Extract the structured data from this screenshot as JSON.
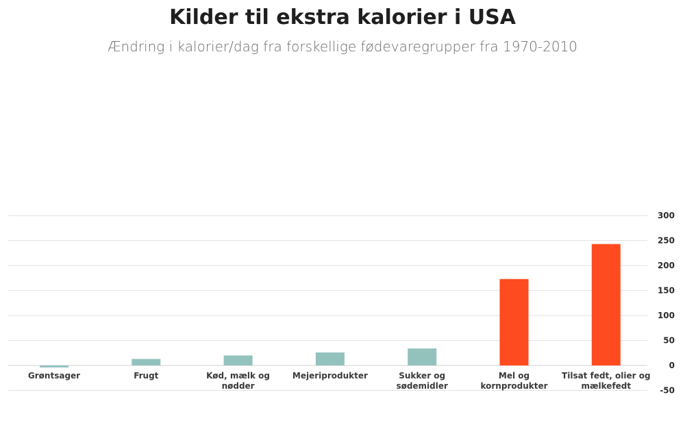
{
  "chart_data": {
    "type": "bar",
    "title": "Kilder til ekstra kalorier i USA",
    "subtitle": "Ændring i kalorier/dag fra forskellige fødevaregrupper fra 1970-2010",
    "categories": [
      [
        "Grøntsager"
      ],
      [
        "Frugt"
      ],
      [
        "Kød, mælk og",
        "nødder"
      ],
      [
        "Mejeriprodukter"
      ],
      [
        "Sukker og",
        "sødemidler"
      ],
      [
        "Mel og",
        "kornprodukter"
      ],
      [
        "Tilsat fedt, olier og",
        "mælkefedt"
      ]
    ],
    "values": [
      -4,
      13,
      20,
      26,
      34,
      173,
      243
    ],
    "bar_colors": [
      "#93c2bd",
      "#93c2bd",
      "#93c2bd",
      "#93c2bd",
      "#93c2bd",
      "#ff4b1f",
      "#ff4b1f"
    ],
    "ylim": [
      -50,
      300
    ],
    "yticks": [
      -50,
      0,
      50,
      100,
      150,
      200,
      250,
      300
    ],
    "ytick_labels": [
      "-50",
      "0",
      "50",
      "100",
      "150",
      "200",
      "250",
      "300"
    ],
    "xlabel": "",
    "ylabel": "",
    "grid": true,
    "y_axis_side": "right"
  }
}
